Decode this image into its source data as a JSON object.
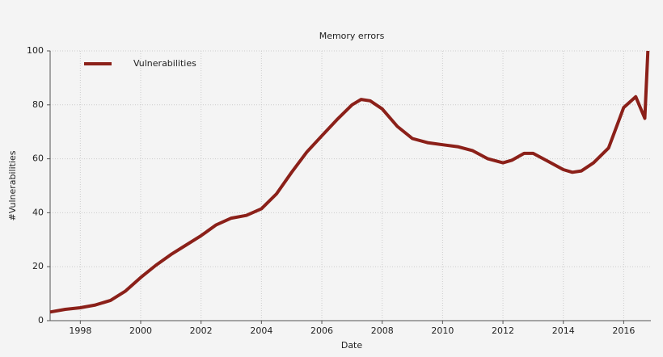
{
  "chart_data": {
    "type": "line",
    "title": "Memory errors",
    "x_label": "Date",
    "y_label": "#Vulnerabilities",
    "x": [
      1997.0,
      1997.5,
      1998.0,
      1998.5,
      1999.0,
      1999.5,
      2000.0,
      2000.5,
      2001.0,
      2001.5,
      2002.0,
      2002.5,
      2003.0,
      2003.5,
      2004.0,
      2004.5,
      2005.0,
      2005.5,
      2006.0,
      2006.5,
      2007.0,
      2007.3,
      2007.6,
      2008.0,
      2008.5,
      2009.0,
      2009.5,
      2010.0,
      2010.5,
      2011.0,
      2011.5,
      2012.0,
      2012.3,
      2012.7,
      2013.0,
      2013.5,
      2014.0,
      2014.3,
      2014.6,
      2015.0,
      2015.5,
      2016.0,
      2016.4,
      2016.7,
      2016.8
    ],
    "series": [
      {
        "name": "Vulnerabilities",
        "color": "#8b2019",
        "values": [
          3.2,
          4.2,
          4.8,
          5.8,
          7.5,
          11,
          16,
          20.5,
          24.5,
          28,
          31.5,
          35.5,
          38,
          39,
          41.5,
          47,
          55,
          62.5,
          68.5,
          74.5,
          80,
          82,
          81.5,
          78.5,
          72,
          67.5,
          66,
          65.2,
          64.5,
          63,
          60,
          58.5,
          59.5,
          62,
          62,
          59,
          56,
          55,
          55.5,
          58.5,
          64,
          79,
          83,
          75,
          100
        ]
      }
    ],
    "xlim": [
      1997,
      2016.9
    ],
    "xticks": [
      1998,
      2000,
      2002,
      2004,
      2006,
      2008,
      2010,
      2012,
      2014,
      2016
    ],
    "ylim": [
      0,
      100
    ],
    "yticks": [
      0,
      20,
      40,
      60,
      80,
      100
    ],
    "grid": true,
    "legend": "upper-left"
  }
}
